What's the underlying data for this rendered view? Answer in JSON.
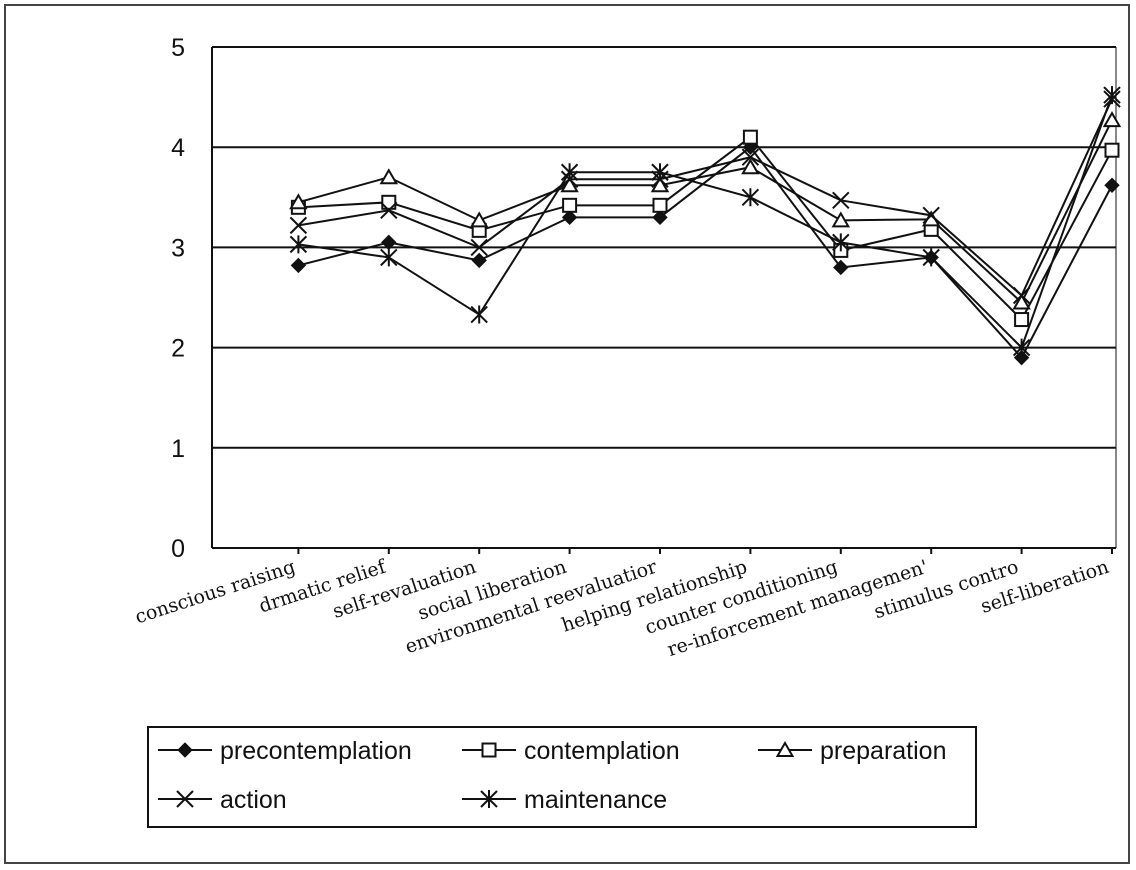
{
  "chart_data": {
    "type": "line",
    "title": "",
    "xlabel": "",
    "ylabel": "",
    "ylim": [
      0,
      5
    ],
    "yticks": [
      "0",
      "1",
      "2",
      "3",
      "4",
      "5"
    ],
    "grid": "horizontal",
    "legend_position": "bottom",
    "categories": [
      "conscious raising",
      "drmatic relief",
      "self-revaluation",
      "social liberation",
      "environmental reevaluatior",
      "helping relationship",
      "counter conditioning",
      "re-inforcement managemen'",
      "stimulus contro",
      "self-liberation"
    ],
    "series": [
      {
        "name": "precontemplation",
        "marker": "diamond",
        "values": [
          2.82,
          3.05,
          2.87,
          3.3,
          3.3,
          4.0,
          2.8,
          2.9,
          1.9,
          3.62
        ]
      },
      {
        "name": "contemplation",
        "marker": "square",
        "values": [
          3.4,
          3.45,
          3.17,
          3.42,
          3.42,
          4.1,
          2.97,
          3.18,
          2.28,
          3.97
        ]
      },
      {
        "name": "preparation",
        "marker": "triangle",
        "values": [
          3.45,
          3.7,
          3.27,
          3.62,
          3.62,
          3.8,
          3.27,
          3.28,
          2.45,
          4.27
        ]
      },
      {
        "name": "action",
        "marker": "x",
        "values": [
          3.22,
          3.37,
          3.0,
          3.68,
          3.68,
          3.9,
          3.47,
          3.32,
          2.52,
          4.48
        ]
      },
      {
        "name": "maintenance",
        "marker": "asterisk",
        "values": [
          3.03,
          2.9,
          2.33,
          3.75,
          3.75,
          3.5,
          3.05,
          2.9,
          2.0,
          4.52
        ]
      }
    ]
  }
}
